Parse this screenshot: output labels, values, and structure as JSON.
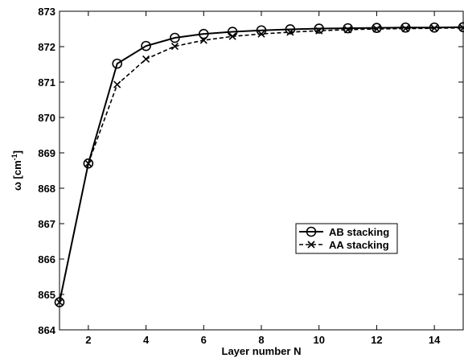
{
  "chart_data": {
    "type": "line",
    "title": "",
    "xlabel": "Layer number N",
    "ylabel": {
      "prefix": "ω [cm",
      "superscript": "-1",
      "suffix": "]"
    },
    "xlim": [
      1,
      15
    ],
    "ylim": [
      864,
      873
    ],
    "xticks": [
      2,
      4,
      6,
      8,
      10,
      12,
      14
    ],
    "yticks": [
      864,
      865,
      866,
      867,
      868,
      869,
      870,
      871,
      872,
      873
    ],
    "grid": false,
    "legend_position": "center-right",
    "series": [
      {
        "name": "AB stacking",
        "line_style": "solid",
        "marker": "circle",
        "color": "#000000",
        "x": [
          1,
          2,
          3,
          4,
          5,
          6,
          7,
          8,
          9,
          10,
          11,
          12,
          13,
          14,
          15
        ],
        "y": [
          864.78,
          868.7,
          871.52,
          872.02,
          872.25,
          872.36,
          872.42,
          872.46,
          872.49,
          872.51,
          872.52,
          872.53,
          872.54,
          872.54,
          872.55
        ]
      },
      {
        "name": "AA stacking",
        "line_style": "dashed",
        "marker": "x",
        "color": "#000000",
        "x": [
          1,
          2,
          3,
          4,
          5,
          6,
          7,
          8,
          9,
          10,
          11,
          12,
          13,
          14,
          15
        ],
        "y": [
          864.78,
          868.7,
          870.93,
          871.65,
          872.01,
          872.18,
          872.29,
          872.36,
          872.41,
          872.45,
          872.48,
          872.5,
          872.51,
          872.52,
          872.53
        ]
      }
    ]
  }
}
